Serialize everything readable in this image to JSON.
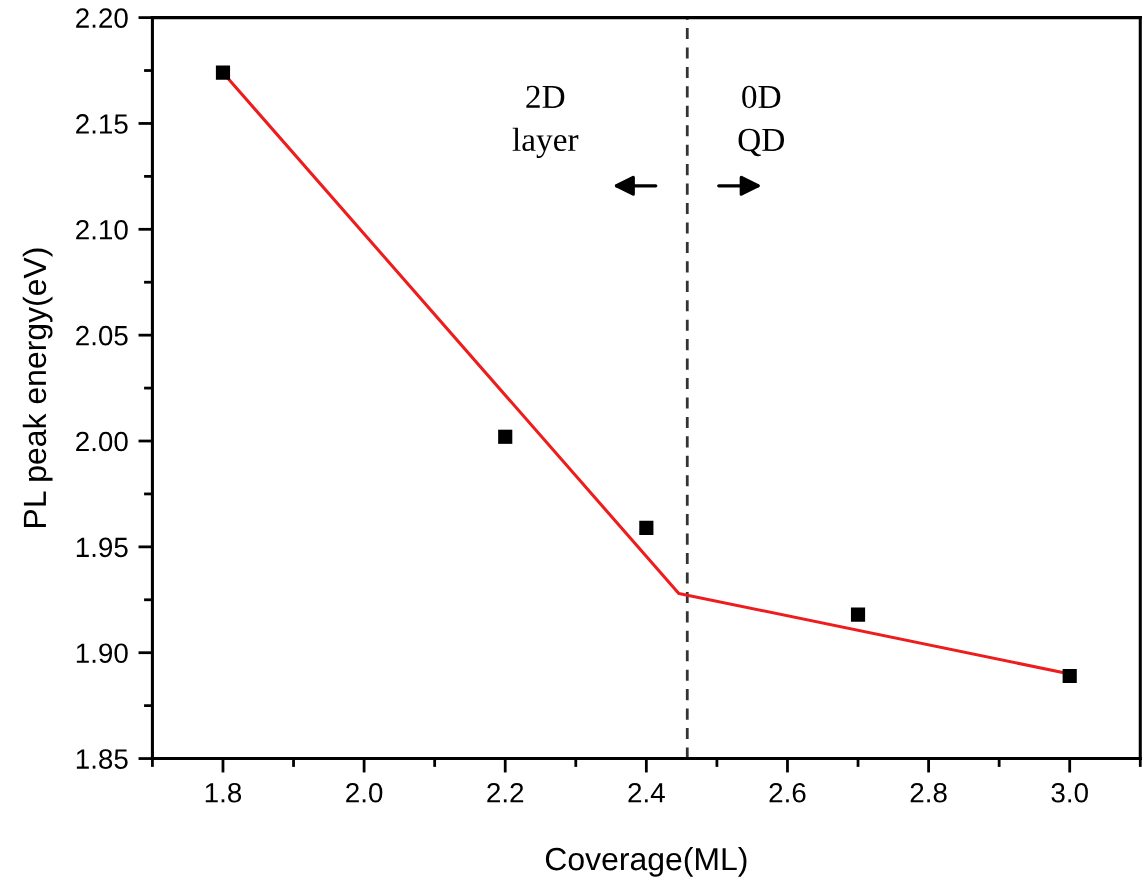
{
  "chart_data": {
    "type": "scatter",
    "xlabel": "Coverage(ML)",
    "ylabel": "PL peak energy(eV)",
    "xlim": [
      1.7,
      3.1
    ],
    "ylim": [
      1.85,
      2.2
    ],
    "xticks": [
      1.8,
      {
        "value": 2,
        "label": "2.0"
      },
      2.2,
      2.4,
      2.6,
      2.8,
      {
        "value": 3,
        "label": "3.0"
      }
    ],
    "yticks": [
      1.85,
      {
        "value": 1.9,
        "label": "1.90"
      },
      1.95,
      {
        "value": 2,
        "label": "2.00"
      },
      2.05,
      {
        "value": 2.1,
        "label": "2.10"
      },
      2.15,
      {
        "value": 2.2,
        "label": "2.20"
      }
    ],
    "grid": false,
    "marker": "square",
    "series": [
      {
        "type": "line",
        "color": "#ee1c1c",
        "marker": "none",
        "x": [
          1.8,
          2.446,
          3.0
        ],
        "values": [
          2.174,
          1.928,
          1.89
        ]
      },
      {
        "color": "#000000",
        "x": [
          1.8,
          2.2,
          2.4,
          2.7,
          3.0
        ],
        "values": [
          2.174,
          2.002,
          1.959,
          1.918,
          1.889
        ]
      }
    ],
    "ref_lines": [
      {
        "axis": "x",
        "value": 2.458,
        "line_style": "dashed",
        "color": "#333333"
      }
    ],
    "annotations": [
      "2D\nlayer",
      "0D\nQD"
    ]
  }
}
